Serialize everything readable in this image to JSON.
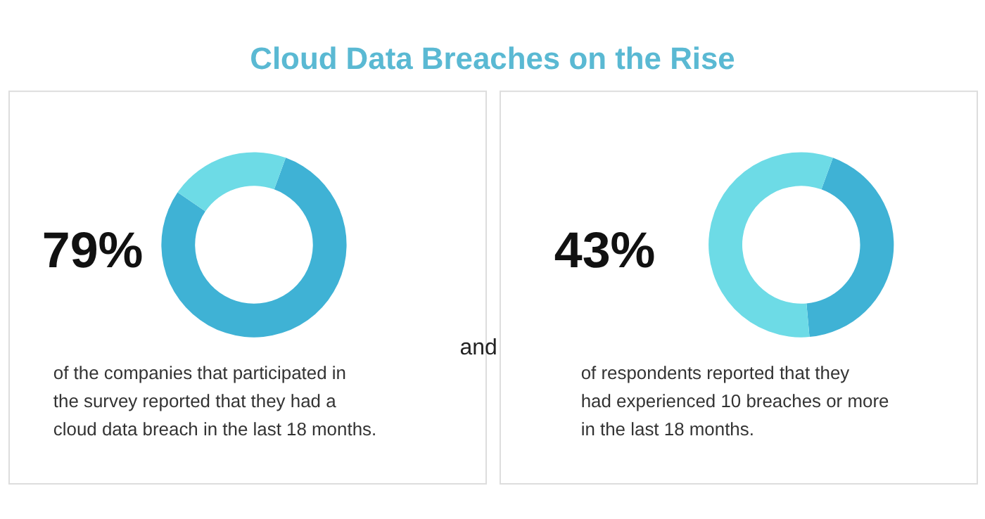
{
  "chart_data": [
    {
      "type": "donut",
      "title": "Cloud Data Breaches on the Rise",
      "categories": [
        null,
        null
      ],
      "values": [
        79,
        21
      ],
      "colors": [
        "#3fb2d5",
        "#6ddbe6"
      ],
      "legend": false,
      "annotations": [
        "79%",
        "of the companies that participated in\nthe survey reported that they had a\ncloud data breach in the last 18 months.",
        "and"
      ]
    },
    {
      "type": "donut",
      "categories": [
        null,
        null
      ],
      "values": [
        43,
        57
      ],
      "colors": [
        "#3fb2d5",
        "#6ddbe6"
      ],
      "legend": false,
      "annotations": [
        "43%",
        "of respondents reported that they\nhad experienced 10 breaches or more\nin the last 18 months."
      ]
    }
  ]
}
